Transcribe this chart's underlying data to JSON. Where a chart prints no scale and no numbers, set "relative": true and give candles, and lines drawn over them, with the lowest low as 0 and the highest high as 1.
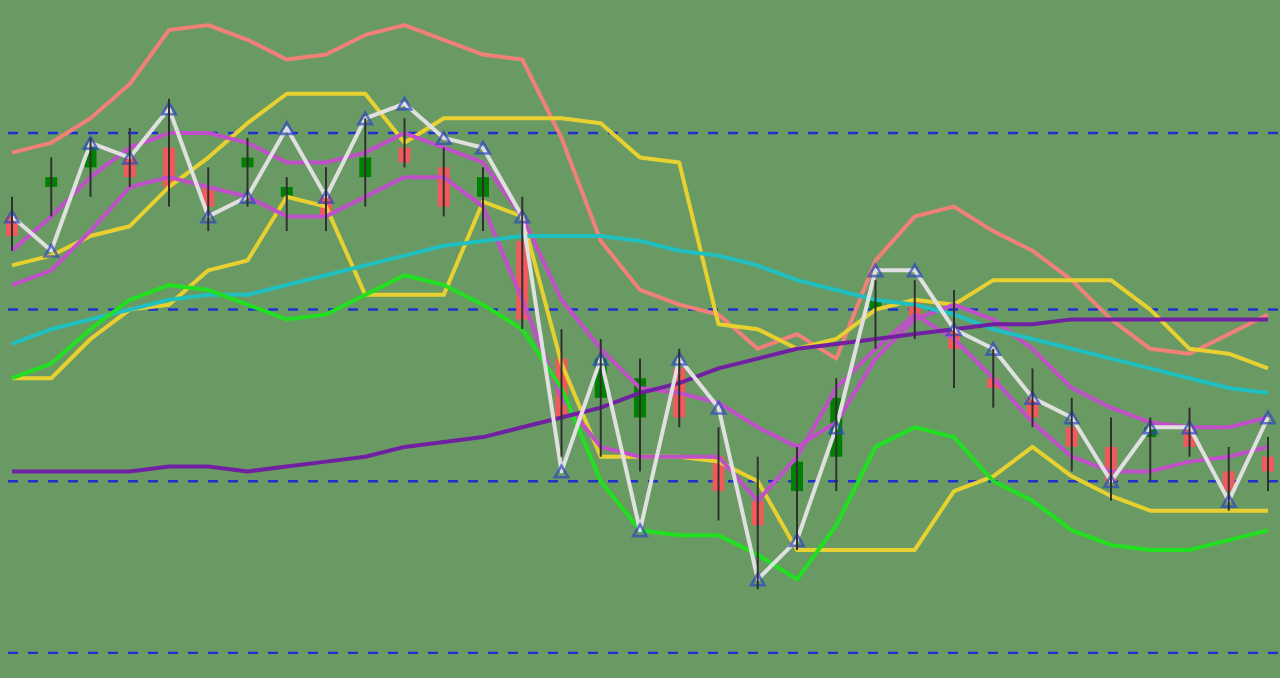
{
  "chart_data": {
    "type": "candlestick",
    "relative": true,
    "categories": [
      null,
      null,
      null,
      null,
      null,
      null,
      null,
      null,
      null,
      null,
      null,
      null,
      null,
      null,
      null,
      null,
      null,
      null,
      null,
      null,
      null,
      null,
      null,
      null,
      null,
      null,
      null,
      null,
      null,
      null,
      null,
      null,
      null
    ],
    "ohlc": [
      [
        0.76,
        0.8,
        0.69,
        0.72
      ],
      [
        0.82,
        0.88,
        0.76,
        0.84
      ],
      [
        0.86,
        0.92,
        0.8,
        0.9
      ],
      [
        0.88,
        0.94,
        0.82,
        0.84
      ],
      [
        0.9,
        1.0,
        0.78,
        0.82
      ],
      [
        0.82,
        0.86,
        0.73,
        0.78
      ],
      [
        0.86,
        0.92,
        0.78,
        0.88
      ],
      [
        0.8,
        0.84,
        0.73,
        0.82
      ],
      [
        0.8,
        0.86,
        0.73,
        0.76
      ],
      [
        0.84,
        0.96,
        0.78,
        0.88
      ],
      [
        0.9,
        0.96,
        0.86,
        0.87
      ],
      [
        0.86,
        0.9,
        0.76,
        0.78
      ],
      [
        0.8,
        0.86,
        0.73,
        0.84
      ],
      [
        0.71,
        0.8,
        0.53,
        0.55
      ],
      [
        0.47,
        0.53,
        0.27,
        0.35
      ],
      [
        0.39,
        0.51,
        0.27,
        0.47
      ],
      [
        0.35,
        0.47,
        0.24,
        0.43
      ],
      [
        0.45,
        0.49,
        0.33,
        0.35
      ],
      [
        0.27,
        0.33,
        0.14,
        0.2
      ],
      [
        0.18,
        0.27,
        0.0,
        0.13
      ],
      [
        0.2,
        0.29,
        0.08,
        0.26
      ],
      [
        0.27,
        0.43,
        0.2,
        0.39
      ],
      [
        0.57,
        0.63,
        0.49,
        0.59
      ],
      [
        0.59,
        0.63,
        0.51,
        0.55
      ],
      [
        0.53,
        0.61,
        0.41,
        0.49
      ],
      [
        0.43,
        0.49,
        0.37,
        0.41
      ],
      [
        0.39,
        0.45,
        0.33,
        0.35
      ],
      [
        0.33,
        0.39,
        0.24,
        0.29
      ],
      [
        0.29,
        0.35,
        0.18,
        0.22
      ],
      [
        0.31,
        0.35,
        0.22,
        0.33
      ],
      [
        0.33,
        0.37,
        0.27,
        0.29
      ],
      [
        0.24,
        0.29,
        0.16,
        0.2
      ],
      [
        0.27,
        0.31,
        0.2,
        0.24
      ]
    ],
    "colors": [
      "#f05a5a",
      "#008000",
      "#008000",
      "#f05a5a",
      "#f05a5a",
      "#f05a5a",
      "#008000",
      "#008000",
      "#f05a5a",
      "#008000",
      "#f05a5a",
      "#f05a5a",
      "#008000",
      "#f05a5a",
      "#f05a5a",
      "#008000",
      "#008000",
      "#f05a5a",
      "#f05a5a",
      "#f05a5a",
      "#008000",
      "#008000",
      "#008000",
      "#f05a5a",
      "#f05a5a",
      "#f05a5a",
      "#f05a5a",
      "#f05a5a",
      "#f05a5a",
      "#008000",
      "#f05a5a",
      "#f05a5a",
      "#f05a5a"
    ],
    "series": [
      {
        "type": "line",
        "color": "#f08078",
        "values": [
          0.89,
          0.91,
          0.96,
          1.03,
          1.14,
          1.15,
          1.12,
          1.08,
          1.09,
          1.13,
          1.15,
          1.12,
          1.09,
          1.08,
          0.92,
          0.71,
          0.61,
          0.58,
          0.56,
          0.49,
          0.52,
          0.47,
          0.67,
          0.76,
          0.78,
          0.73,
          0.69,
          0.63,
          0.55,
          0.49,
          0.48,
          0.52,
          0.56
        ]
      },
      {
        "type": "line",
        "color": "#e8d030",
        "values": [
          0.66,
          0.68,
          0.72,
          0.74,
          0.82,
          0.88,
          0.95,
          1.01,
          1.01,
          1.01,
          0.91,
          0.96,
          0.96,
          0.96,
          0.96,
          0.95,
          0.88,
          0.87,
          0.54,
          0.53,
          0.49,
          0.51,
          0.57,
          0.59,
          0.58,
          0.63,
          0.63,
          0.63,
          0.63,
          0.57,
          0.49,
          0.48,
          0.45
        ]
      },
      {
        "type": "line",
        "color": "#e8d030",
        "values": [
          0.43,
          0.43,
          0.51,
          0.57,
          0.58,
          0.65,
          0.67,
          0.8,
          0.78,
          0.6,
          0.6,
          0.6,
          0.79,
          0.76,
          0.46,
          0.27,
          0.27,
          0.27,
          0.26,
          0.22,
          0.08,
          0.08,
          0.08,
          0.08,
          0.2,
          0.23,
          0.29,
          0.23,
          0.19,
          0.16,
          0.16,
          0.16,
          0.16
        ]
      },
      {
        "type": "line",
        "color": "#c050c8",
        "values": [
          0.69,
          0.76,
          0.84,
          0.9,
          0.93,
          0.93,
          0.91,
          0.87,
          0.87,
          0.89,
          0.93,
          0.9,
          0.87,
          0.76,
          0.59,
          0.49,
          0.41,
          0.4,
          0.38,
          0.33,
          0.29,
          0.34,
          0.47,
          0.55,
          0.58,
          0.55,
          0.49,
          0.41,
          0.37,
          0.34,
          0.33,
          0.33,
          0.35
        ]
      },
      {
        "type": "line",
        "color": "#c050c8",
        "values": [
          0.62,
          0.65,
          0.73,
          0.82,
          0.84,
          0.82,
          0.8,
          0.76,
          0.76,
          0.8,
          0.84,
          0.84,
          0.78,
          0.59,
          0.39,
          0.29,
          0.27,
          0.27,
          0.27,
          0.18,
          0.27,
          0.41,
          0.49,
          0.56,
          0.51,
          0.43,
          0.34,
          0.27,
          0.24,
          0.24,
          0.26,
          0.27,
          0.29
        ]
      },
      {
        "type": "line",
        "color": "#20c0c0",
        "values": [
          0.5,
          0.53,
          0.55,
          0.57,
          0.59,
          0.6,
          0.6,
          0.62,
          0.64,
          0.66,
          0.68,
          0.7,
          0.71,
          0.72,
          0.72,
          0.72,
          0.71,
          0.69,
          0.68,
          0.66,
          0.63,
          0.61,
          0.59,
          0.58,
          0.56,
          0.53,
          0.51,
          0.49,
          0.47,
          0.45,
          0.43,
          0.41,
          0.4
        ]
      },
      {
        "type": "line",
        "color": "#20e020",
        "values": [
          0.43,
          0.46,
          0.53,
          0.59,
          0.62,
          0.61,
          0.58,
          0.55,
          0.56,
          0.6,
          0.64,
          0.62,
          0.58,
          0.53,
          0.41,
          0.22,
          0.12,
          0.11,
          0.11,
          0.07,
          0.02,
          0.13,
          0.29,
          0.33,
          0.31,
          0.22,
          0.18,
          0.12,
          0.09,
          0.08,
          0.08,
          0.1,
          0.12
        ]
      },
      {
        "type": "line",
        "color": "#7020a0",
        "values": [
          0.24,
          0.24,
          0.24,
          0.24,
          0.25,
          0.25,
          0.24,
          0.25,
          0.26,
          0.27,
          0.29,
          0.3,
          0.31,
          0.33,
          0.35,
          0.37,
          0.4,
          0.42,
          0.45,
          0.47,
          0.49,
          0.5,
          0.51,
          0.52,
          0.53,
          0.54,
          0.54,
          0.55,
          0.55,
          0.55,
          0.55,
          0.55,
          0.55
        ]
      },
      {
        "type": "line",
        "color": "#e0e0e0",
        "marker": "triangle",
        "values": [
          0.76,
          0.69,
          0.91,
          0.88,
          0.98,
          0.76,
          0.8,
          0.94,
          0.8,
          0.96,
          0.99,
          0.92,
          0.9,
          0.76,
          0.24,
          0.47,
          0.12,
          0.47,
          0.37,
          0.02,
          0.1,
          0.33,
          0.65,
          0.65,
          0.53,
          0.49,
          0.39,
          0.35,
          0.22,
          0.33,
          0.33,
          0.18,
          0.35
        ]
      }
    ],
    "ref_lines": [
      {
        "axis": "y",
        "value": 0.93,
        "color": "#2030d0",
        "line_style": "dashed"
      },
      {
        "axis": "y",
        "value": 0.57,
        "color": "#2030d0",
        "line_style": "dashed"
      },
      {
        "axis": "y",
        "value": 0.22,
        "color": "#2030d0",
        "line_style": "dashed"
      },
      {
        "axis": "y",
        "value": -0.13,
        "color": "#2030d0",
        "line_style": "dashed"
      }
    ]
  }
}
